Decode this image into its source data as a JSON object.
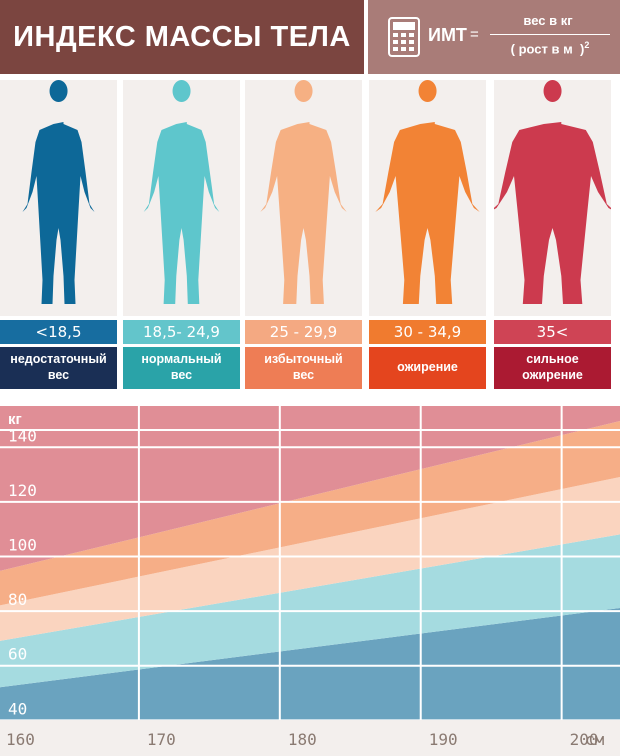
{
  "header": {
    "title": "ИНДЕКС МАССЫ ТЕЛА",
    "formula_label": "ИМТ",
    "formula_eq": "=",
    "numerator": "вес в кг",
    "denominator_open": "( рост в м",
    "denominator_close": ")",
    "exponent": "2",
    "icon": "calculator-icon"
  },
  "categories": [
    {
      "range": "<18,5",
      "label_line1": "недостаточный",
      "label_line2": "вес",
      "color": "#0d6898",
      "range_color": "#176da0",
      "label_color": "#1a2f55"
    },
    {
      "range": "18,5- 24,9",
      "label_line1": "нормальный",
      "label_line2": "вес",
      "color": "#5ec6cc",
      "range_color": "#63c5cb",
      "label_color": "#2aa3a8"
    },
    {
      "range": "25 - 29,9",
      "label_line1": "избыточный",
      "label_line2": "вес",
      "color": "#f6b083",
      "range_color": "#f4a982",
      "label_color": "#ee7d55"
    },
    {
      "range": "30 - 34,9",
      "label_line1": "ожирение",
      "label_line2": "",
      "color": "#f28335",
      "range_color": "#f07b2f",
      "label_color": "#e4451e"
    },
    {
      "range": "35<",
      "label_line1": "сильное",
      "label_line2": "ожирение",
      "color": "#cc3a4e",
      "range_color": "#cf4455",
      "label_color": "#ab1a32"
    }
  ],
  "chart_data": {
    "type": "area",
    "ylabel": "кг",
    "xlabel": "см",
    "x": [
      160,
      170,
      180,
      190,
      200
    ],
    "y_ticks": [
      40,
      60,
      80,
      100,
      120,
      140
    ],
    "xlim": [
      160,
      204
    ],
    "ylim": [
      35,
      150
    ],
    "boundaries": [
      {
        "name": "18,5",
        "values_at_xlim": [
          47,
          76
        ]
      },
      {
        "name": "25",
        "values_at_xlim": [
          64,
          103
        ]
      },
      {
        "name": "30",
        "values_at_xlim": [
          77,
          124
        ]
      },
      {
        "name": "35",
        "values_at_xlim": [
          89.6,
          144.5
        ]
      }
    ],
    "band_colors": [
      "#6aa3bf",
      "#a5dbe0",
      "#fad4bf",
      "#f6ae87",
      "#e08e96"
    ]
  },
  "x_labels": [
    "160",
    "170",
    "180",
    "190",
    "200"
  ],
  "x_unit": "см"
}
